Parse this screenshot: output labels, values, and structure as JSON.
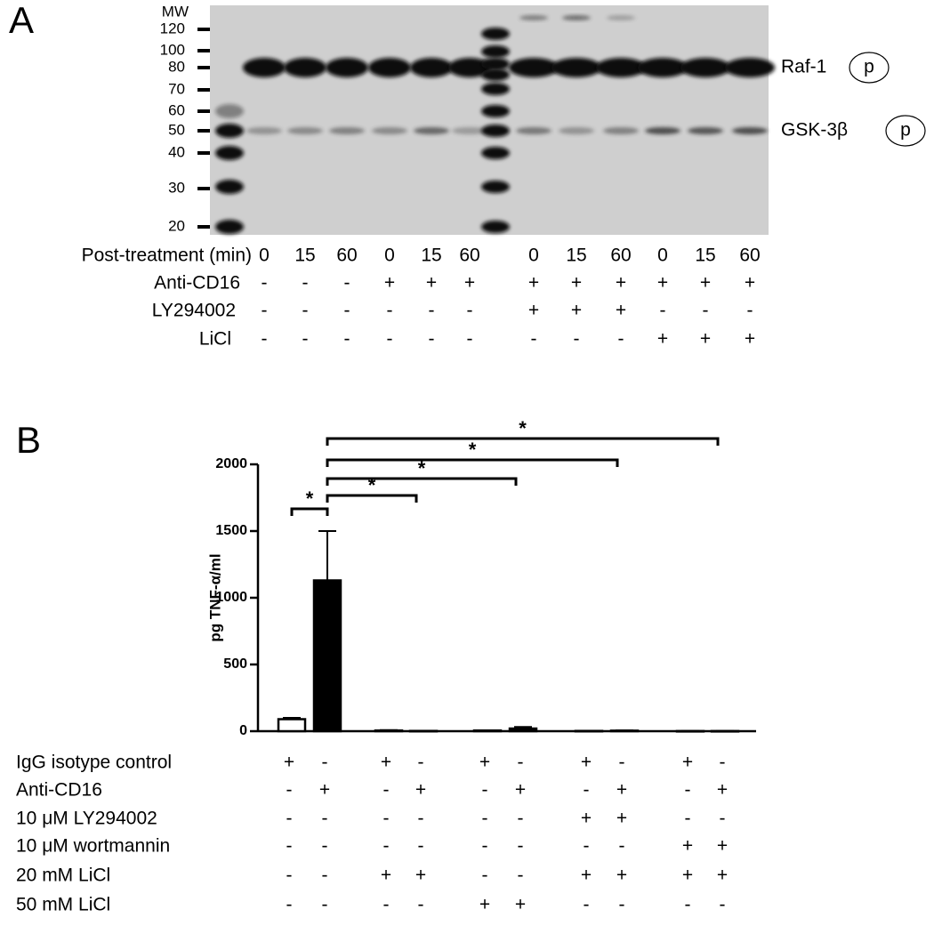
{
  "panel_a": {
    "label": "A",
    "mw_header": "MW",
    "mw_markers": [
      120,
      100,
      80,
      70,
      60,
      50,
      40,
      30,
      20
    ],
    "bands": [
      {
        "name": "Raf-1",
        "mark": "p"
      },
      {
        "name": "GSK-3β",
        "mark": "p"
      }
    ],
    "conditions": [
      {
        "name": "Post-treatment (min)",
        "values": [
          0,
          15,
          60,
          0,
          15,
          60,
          0,
          15,
          60,
          0,
          15,
          60
        ]
      },
      {
        "name": "Anti-CD16",
        "values": [
          "-",
          "-",
          "-",
          "+",
          "+",
          "+",
          "+",
          "+",
          "+",
          "+",
          "+",
          "+"
        ]
      },
      {
        "name": "LY294002",
        "values": [
          "-",
          "-",
          "-",
          "-",
          "-",
          "-",
          "+",
          "+",
          "+",
          "-",
          "-",
          "-"
        ]
      },
      {
        "name": "LiCl",
        "values": [
          "-",
          "-",
          "-",
          "-",
          "-",
          "-",
          "-",
          "-",
          "-",
          "+",
          "+",
          "+"
        ]
      }
    ]
  },
  "chart_data": {
    "type": "bar",
    "panel_label": "B",
    "ylabel": "pg TNF-α/ml",
    "categories": [
      null,
      null,
      null,
      null,
      null,
      null,
      null,
      null,
      null,
      null
    ],
    "values": [
      90,
      1130,
      5,
      2,
      5,
      20,
      2,
      4,
      1,
      1
    ],
    "errors": [
      10,
      370,
      3,
      1,
      2,
      12,
      1,
      2,
      1,
      1
    ],
    "colors": [
      "#ffffff",
      "#000000",
      "#ffffff",
      "#000000",
      "#ffffff",
      "#000000",
      "#ffffff",
      "#000000",
      "#ffffff",
      "#000000"
    ],
    "ylim": [
      0,
      2000
    ],
    "yticks": [
      0,
      500,
      1000,
      1500,
      2000
    ],
    "annotations": [
      "*",
      "*",
      "*",
      "*",
      "*"
    ],
    "conditions": [
      {
        "name": "IgG isotype control",
        "values": [
          "+",
          "-",
          "+",
          "-",
          "+",
          "-",
          "+",
          "-",
          "+",
          "-"
        ]
      },
      {
        "name": "Anti-CD16",
        "values": [
          "-",
          "+",
          "-",
          "+",
          "-",
          "+",
          "-",
          "+",
          "-",
          "+"
        ]
      },
      {
        "name": "10 μM LY294002",
        "values": [
          "-",
          "-",
          "-",
          "-",
          "-",
          "-",
          "+",
          "+",
          "-",
          "-"
        ]
      },
      {
        "name": "10 μM wortmannin",
        "values": [
          "-",
          "-",
          "-",
          "-",
          "-",
          "-",
          "-",
          "-",
          "+",
          "+"
        ]
      },
      {
        "name": "20 mM LiCl",
        "values": [
          "-",
          "-",
          "+",
          "+",
          "-",
          "-",
          "+",
          "+",
          "+",
          "+"
        ]
      },
      {
        "name": "50 mM LiCl",
        "values": [
          "-",
          "-",
          "-",
          "-",
          "+",
          "+",
          "-",
          "-",
          "-",
          "-"
        ]
      }
    ]
  }
}
